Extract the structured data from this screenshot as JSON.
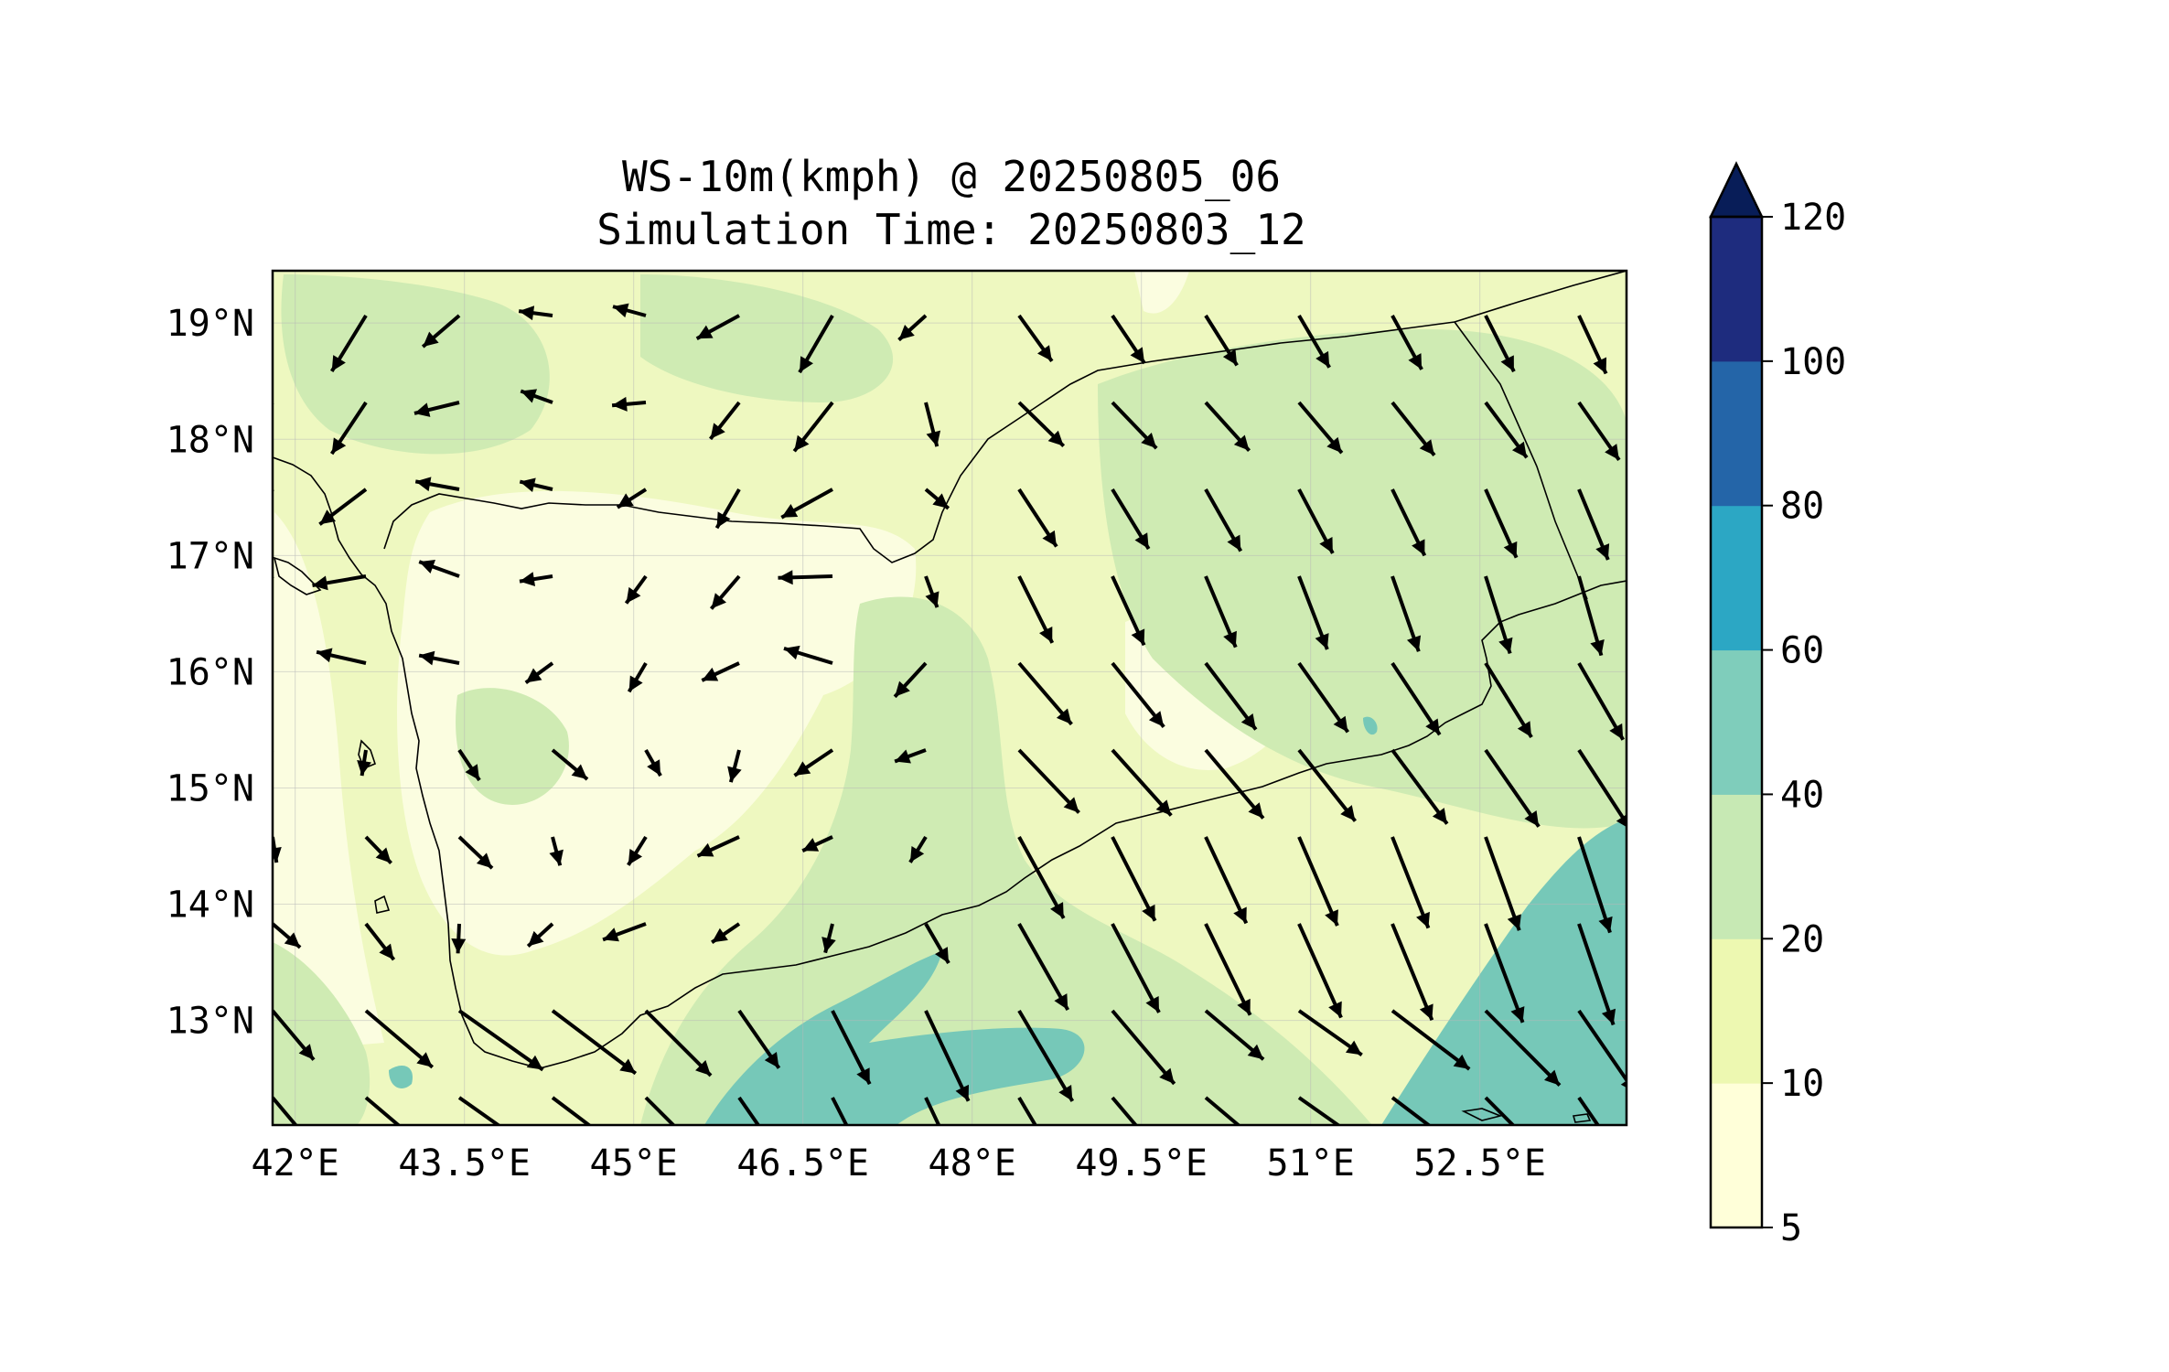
{
  "title": {
    "line1": "WS-10m(kmph) @ 20250805_06",
    "line2": "Simulation Time: 20250803_12"
  },
  "map": {
    "lon_range": [
      41.8,
      53.8
    ],
    "lat_range": [
      12.1,
      19.45
    ],
    "lon_ticks": [
      42,
      43.5,
      45,
      46.5,
      48,
      49.5,
      51,
      52.5
    ],
    "lat_ticks": [
      13,
      14,
      15,
      16,
      17,
      18,
      19
    ],
    "lon_tick_labels": [
      "42°E",
      "43.5°E",
      "45°E",
      "46.5°E",
      "48°E",
      "49.5°E",
      "51°E",
      "52.5°E"
    ],
    "lat_tick_labels": [
      "13°N",
      "14°N",
      "15°N",
      "16°N",
      "17°N",
      "18°N",
      "19°N"
    ],
    "gridlines": true
  },
  "colorbar": {
    "levels": [
      5,
      10,
      20,
      40,
      60,
      80,
      100,
      120
    ],
    "labels": [
      "5",
      "10",
      "20",
      "40",
      "60",
      "80",
      "100",
      "120"
    ],
    "colors": [
      "#ffffd9",
      "#edf8b1",
      "#c7e9b4",
      "#7fcdbb",
      "#2ca7c4",
      "#2465a8",
      "#1e2c7e"
    ],
    "extend_color": "#081d58",
    "extend": "max"
  },
  "colors": {
    "field_base": "#eef8c0",
    "field_light": "#fbfde0",
    "field_mid": "#cfebb3",
    "field_high": "#76c8b8",
    "border": "#000000",
    "vector": "#000000"
  }
}
